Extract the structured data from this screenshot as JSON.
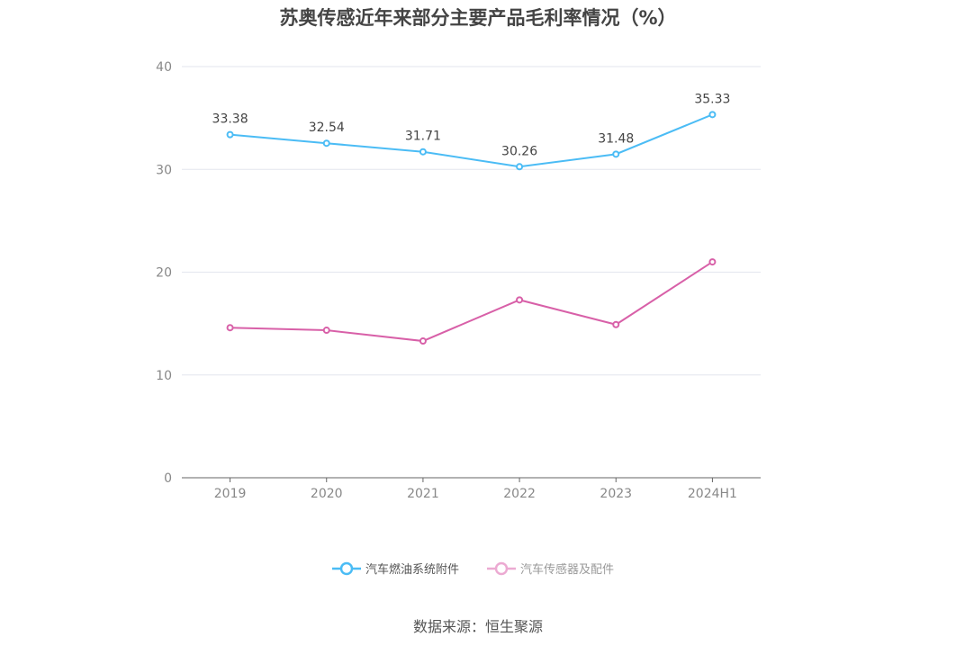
{
  "chart_data": {
    "type": "line",
    "title": "苏奥传感近年来部分主要产品毛利率情况（%）",
    "categories": [
      "2019",
      "2020",
      "2021",
      "2022",
      "2023",
      "2024H1"
    ],
    "ylim": [
      0,
      40
    ],
    "yticks": [
      "0",
      "10",
      "20",
      "30",
      "40"
    ],
    "grid": true,
    "legend_position": "bottom",
    "series": [
      {
        "name": "汽车燃油系统附件",
        "color": "#4bbcf5",
        "values": [
          33.38,
          32.54,
          31.71,
          30.26,
          31.48,
          35.33
        ],
        "labels": [
          "33.38",
          "32.54",
          "31.71",
          "30.26",
          "31.48",
          "35.33"
        ]
      },
      {
        "name": "汽车传感器及配件",
        "color": "#d860a8",
        "legend_color": "#ecaad2",
        "values": [
          14.6,
          14.35,
          13.3,
          17.3,
          14.9,
          21.0
        ]
      }
    ]
  },
  "source": "数据来源：恒生聚源"
}
